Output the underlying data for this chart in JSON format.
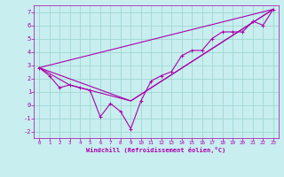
{
  "bg_color": "#c8eef0",
  "grid_color": "#a0d8d0",
  "line_color": "#aa00aa",
  "xlabel": "Windchill (Refroidissement éolien,°C)",
  "xlim": [
    -0.5,
    23.5
  ],
  "ylim": [
    -2.5,
    7.5
  ],
  "xticks": [
    0,
    1,
    2,
    3,
    4,
    5,
    6,
    7,
    8,
    9,
    10,
    11,
    12,
    13,
    14,
    15,
    16,
    17,
    18,
    19,
    20,
    21,
    22,
    23
  ],
  "yticks": [
    -2,
    -1,
    0,
    1,
    2,
    3,
    4,
    5,
    6,
    7
  ],
  "scatter_x": [
    0,
    1,
    2,
    3,
    4,
    5,
    6,
    7,
    8,
    9,
    10,
    11,
    12,
    13,
    14,
    15,
    16,
    17,
    18,
    19,
    20,
    21,
    22,
    23
  ],
  "scatter_y": [
    2.8,
    2.2,
    1.3,
    1.5,
    1.3,
    1.1,
    -0.9,
    0.1,
    -0.5,
    -1.8,
    0.3,
    1.8,
    2.2,
    2.5,
    3.7,
    4.1,
    4.1,
    5.0,
    5.5,
    5.5,
    5.5,
    6.3,
    6.0,
    7.2
  ],
  "line1_x": [
    0,
    23
  ],
  "line1_y": [
    2.8,
    7.2
  ],
  "line2_x": [
    0,
    9,
    23
  ],
  "line2_y": [
    2.8,
    0.3,
    7.2
  ],
  "line3_x": [
    0,
    3,
    9,
    23
  ],
  "line3_y": [
    2.8,
    1.5,
    0.3,
    7.2
  ]
}
